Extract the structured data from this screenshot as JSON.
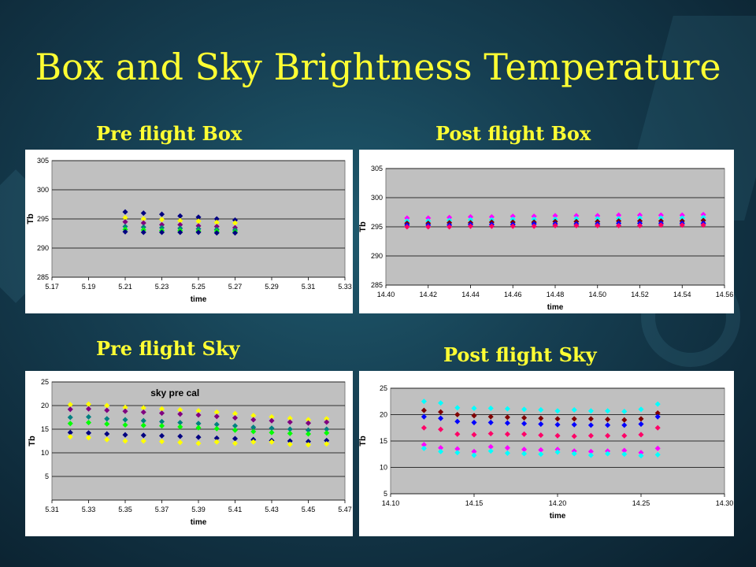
{
  "slide": {
    "title": "Box and Sky Brightness Temperature"
  },
  "labels": {
    "pre_box": "Pre flight Box",
    "post_box": "Post flight Box",
    "pre_sky": "Pre flight Sky",
    "post_sky": "Post flight Sky"
  },
  "series_colors": [
    "#000080",
    "#ff00ff",
    "#ffff00",
    "#00ffff",
    "#800080",
    "#800000",
    "#008080",
    "#0000ff",
    "#00ff00",
    "#ff0066"
  ],
  "chart_data": [
    {
      "id": "pre_box",
      "type": "scatter",
      "title": "",
      "xlabel": "time",
      "ylabel": "Tb",
      "xlim": [
        5.17,
        5.33
      ],
      "ylim": [
        285,
        305
      ],
      "xticks": [
        5.17,
        5.19,
        5.21,
        5.23,
        5.25,
        5.27,
        5.29,
        5.31,
        5.33
      ],
      "xtick_labels": [
        "5.17",
        "5.19",
        "5.21",
        "5.23",
        "5.25",
        "5.27",
        "5.29",
        "5.31",
        "5.33"
      ],
      "yticks": [
        285,
        290,
        295,
        300,
        305
      ],
      "ytick_labels": [
        "285",
        "290",
        "295",
        "300",
        "305"
      ],
      "grid": "horizontal",
      "series": [
        {
          "x": [
            5.21,
            5.22,
            5.23,
            5.24,
            5.25,
            5.26,
            5.27
          ],
          "values": [
            296.2,
            296.0,
            295.8,
            295.5,
            295.3,
            295.0,
            294.8
          ]
        },
        {
          "x": [
            5.21,
            5.22,
            5.23,
            5.24,
            5.25,
            5.26,
            5.27
          ],
          "values": [
            295.2,
            295.0,
            294.9,
            294.7,
            294.6,
            294.4,
            294.3
          ]
        },
        {
          "x": [
            5.21,
            5.22,
            5.23,
            5.24,
            5.25,
            5.26,
            5.27
          ],
          "values": [
            294.5,
            294.3,
            294.0,
            294.0,
            293.8,
            293.7,
            293.5
          ]
        },
        {
          "x": [
            5.21,
            5.22,
            5.23,
            5.24,
            5.25,
            5.26,
            5.27
          ],
          "values": [
            293.7,
            293.6,
            293.5,
            293.4,
            293.3,
            293.2,
            293.1
          ]
        },
        {
          "x": [
            5.21,
            5.22,
            5.23,
            5.24,
            5.25,
            5.26,
            5.27
          ],
          "values": [
            293.2,
            293.1,
            293.0,
            293.0,
            292.9,
            292.9,
            292.8
          ]
        },
        {
          "x": [
            5.21,
            5.22,
            5.23,
            5.24,
            5.25,
            5.26,
            5.27
          ],
          "values": [
            292.8,
            292.7,
            292.7,
            292.7,
            292.7,
            292.6,
            292.6
          ]
        }
      ]
    },
    {
      "id": "post_box",
      "type": "scatter",
      "title": "",
      "xlabel": "time",
      "ylabel": "Tb",
      "xlim": [
        14.4,
        14.56
      ],
      "ylim": [
        285,
        305
      ],
      "xticks": [
        14.4,
        14.42,
        14.44,
        14.46,
        14.48,
        14.5,
        14.52,
        14.54,
        14.56
      ],
      "xtick_labels": [
        "14.40",
        "14.42",
        "14.44",
        "14.46",
        "14.48",
        "14.50",
        "14.52",
        "14.54",
        "14.56"
      ],
      "yticks": [
        285,
        290,
        295,
        300,
        305
      ],
      "ytick_labels": [
        "285",
        "290",
        "295",
        "300",
        "305"
      ],
      "grid": "horizontal",
      "series": [
        {
          "x": [
            14.41,
            14.42,
            14.43,
            14.44,
            14.45,
            14.46,
            14.47,
            14.48,
            14.49,
            14.5,
            14.51,
            14.52,
            14.53,
            14.54,
            14.55
          ],
          "values": [
            296.5,
            296.5,
            296.6,
            296.7,
            296.7,
            296.8,
            296.8,
            296.9,
            296.9,
            296.9,
            297.0,
            297.0,
            297.0,
            297.0,
            297.1
          ]
        },
        {
          "x": [
            14.41,
            14.42,
            14.43,
            14.44,
            14.45,
            14.46,
            14.47,
            14.48,
            14.49,
            14.5,
            14.51,
            14.52,
            14.53,
            14.54,
            14.55
          ],
          "values": [
            296.0,
            296.0,
            296.1,
            296.2,
            296.2,
            296.3,
            296.3,
            296.3,
            296.4,
            296.4,
            296.4,
            296.5,
            296.5,
            296.5,
            296.6
          ]
        },
        {
          "x": [
            14.41,
            14.42,
            14.43,
            14.44,
            14.45,
            14.46,
            14.47,
            14.48,
            14.49,
            14.5,
            14.51,
            14.52,
            14.53,
            14.54,
            14.55
          ],
          "values": [
            295.6,
            295.6,
            295.7,
            295.7,
            295.8,
            295.8,
            295.8,
            295.9,
            295.9,
            295.9,
            296.0,
            296.0,
            296.0,
            296.0,
            296.1
          ]
        },
        {
          "x": [
            14.41,
            14.42,
            14.43,
            14.44,
            14.45,
            14.46,
            14.47,
            14.48,
            14.49,
            14.5,
            14.51,
            14.52,
            14.53,
            14.54,
            14.55
          ],
          "values": [
            295.3,
            295.3,
            295.3,
            295.4,
            295.4,
            295.4,
            295.5,
            295.5,
            295.5,
            295.5,
            295.6,
            295.6,
            295.6,
            295.6,
            295.6
          ]
        },
        {
          "x": [
            14.41,
            14.42,
            14.43,
            14.44,
            14.45,
            14.46,
            14.47,
            14.48,
            14.49,
            14.5,
            14.51,
            14.52,
            14.53,
            14.54,
            14.55
          ],
          "values": [
            295.0,
            295.0,
            295.0,
            295.1,
            295.1,
            295.1,
            295.1,
            295.2,
            295.2,
            295.2,
            295.2,
            295.2,
            295.3,
            295.3,
            295.3
          ]
        }
      ]
    },
    {
      "id": "pre_sky",
      "type": "scatter",
      "title": "sky pre cal",
      "xlabel": "time",
      "ylabel": "Tb",
      "xlim": [
        5.31,
        5.47
      ],
      "ylim": [
        0,
        25
      ],
      "xticks": [
        5.31,
        5.33,
        5.35,
        5.37,
        5.39,
        5.41,
        5.43,
        5.45,
        5.47
      ],
      "xtick_labels": [
        "5.31",
        "5.33",
        "5.35",
        "5.37",
        "5.39",
        "5.41",
        "5.43",
        "5.45",
        "5.47"
      ],
      "yticks": [
        0,
        5,
        10,
        15,
        20,
        25
      ],
      "ytick_labels": [
        "",
        "5",
        "10",
        "15",
        "20",
        "25"
      ],
      "grid": "horizontal",
      "series": [
        {
          "x": [
            5.32,
            5.33,
            5.34,
            5.35,
            5.36,
            5.37,
            5.38,
            5.39,
            5.4,
            5.41,
            5.42,
            5.43,
            5.44,
            5.45,
            5.46
          ],
          "values": [
            20.2,
            20.3,
            20.0,
            19.6,
            19.5,
            19.3,
            19.1,
            18.9,
            18.6,
            18.3,
            17.9,
            17.6,
            17.3,
            17.0,
            17.2
          ]
        },
        {
          "x": [
            5.32,
            5.33,
            5.34,
            5.35,
            5.36,
            5.37,
            5.38,
            5.39,
            5.4,
            5.41,
            5.42,
            5.43,
            5.44,
            5.45,
            5.46
          ],
          "values": [
            19.2,
            19.3,
            19.0,
            18.8,
            18.6,
            18.4,
            18.2,
            18.0,
            17.7,
            17.4,
            17.0,
            16.8,
            16.5,
            16.3,
            16.5
          ]
        },
        {
          "x": [
            5.32,
            5.33,
            5.34,
            5.35,
            5.36,
            5.37,
            5.38,
            5.39,
            5.4,
            5.41,
            5.42,
            5.43,
            5.44,
            5.45,
            5.46
          ],
          "values": [
            17.5,
            17.6,
            17.2,
            17.0,
            16.8,
            16.6,
            16.4,
            16.2,
            16.0,
            15.7,
            15.4,
            15.2,
            15.0,
            14.8,
            15.0
          ]
        },
        {
          "x": [
            5.32,
            5.33,
            5.34,
            5.35,
            5.36,
            5.37,
            5.38,
            5.39,
            5.4,
            5.41,
            5.42,
            5.43,
            5.44,
            5.45,
            5.46
          ],
          "values": [
            16.2,
            16.4,
            16.1,
            15.9,
            15.8,
            15.7,
            15.5,
            15.3,
            15.1,
            14.8,
            14.5,
            14.3,
            14.1,
            14.0,
            14.2
          ]
        },
        {
          "x": [
            5.32,
            5.33,
            5.34,
            5.35,
            5.36,
            5.37,
            5.38,
            5.39,
            5.4,
            5.41,
            5.42,
            5.43,
            5.44,
            5.45,
            5.46
          ],
          "values": [
            14.3,
            14.2,
            14.0,
            13.8,
            13.7,
            13.6,
            13.5,
            13.3,
            13.1,
            13.0,
            12.8,
            12.6,
            12.5,
            12.4,
            12.6
          ]
        },
        {
          "x": [
            5.32,
            5.33,
            5.34,
            5.35,
            5.36,
            5.37,
            5.38,
            5.39,
            5.4,
            5.41,
            5.42,
            5.43,
            5.44,
            5.45,
            5.46
          ],
          "values": [
            13.4,
            13.2,
            12.8,
            12.5,
            12.5,
            12.4,
            12.2,
            12.0,
            12.3,
            12.0,
            12.3,
            12.3,
            11.8,
            11.7,
            11.9
          ]
        }
      ]
    },
    {
      "id": "post_sky",
      "type": "scatter",
      "title": "",
      "xlabel": "time",
      "ylabel": "Tb",
      "xlim": [
        14.1,
        14.3
      ],
      "ylim": [
        5,
        25
      ],
      "xticks": [
        14.1,
        14.15,
        14.2,
        14.25,
        14.3
      ],
      "xtick_labels": [
        "14.10",
        "14.15",
        "14.20",
        "14.25",
        "14.30"
      ],
      "yticks": [
        5,
        10,
        15,
        20,
        25
      ],
      "ytick_labels": [
        "5",
        "10",
        "15",
        "20",
        "25"
      ],
      "grid": "horizontal",
      "series": [
        {
          "x": [
            14.12,
            14.13,
            14.14,
            14.15,
            14.16,
            14.17,
            14.18,
            14.19,
            14.2,
            14.21,
            14.22,
            14.23,
            14.24,
            14.25,
            14.26
          ],
          "values": [
            22.5,
            22.2,
            21.3,
            21.2,
            21.2,
            21.1,
            21.0,
            20.9,
            20.7,
            20.9,
            20.7,
            20.7,
            20.6,
            21.0,
            22.0
          ]
        },
        {
          "x": [
            14.12,
            14.13,
            14.14,
            14.15,
            14.16,
            14.17,
            14.18,
            14.19,
            14.2,
            14.21,
            14.22,
            14.23,
            14.24,
            14.25,
            14.26
          ],
          "values": [
            20.8,
            20.5,
            20.0,
            19.8,
            19.6,
            19.5,
            19.4,
            19.3,
            19.2,
            19.2,
            19.2,
            19.1,
            19.0,
            19.2,
            20.3
          ]
        },
        {
          "x": [
            14.12,
            14.13,
            14.14,
            14.15,
            14.16,
            14.17,
            14.18,
            14.19,
            14.2,
            14.21,
            14.22,
            14.23,
            14.24,
            14.25,
            14.26
          ],
          "values": [
            19.6,
            19.3,
            18.7,
            18.5,
            18.5,
            18.4,
            18.3,
            18.2,
            18.1,
            18.1,
            18.0,
            18.0,
            18.0,
            18.2,
            19.6
          ]
        },
        {
          "x": [
            14.12,
            14.13,
            14.14,
            14.15,
            14.16,
            14.17,
            14.18,
            14.19,
            14.2,
            14.21,
            14.22,
            14.23,
            14.24,
            14.25,
            14.26
          ],
          "values": [
            17.5,
            17.2,
            16.3,
            16.2,
            16.4,
            16.3,
            16.3,
            16.1,
            16.0,
            15.9,
            16.0,
            16.0,
            16.0,
            16.2,
            17.5
          ]
        },
        {
          "x": [
            14.12,
            14.13,
            14.14,
            14.15,
            14.16,
            14.17,
            14.18,
            14.19,
            14.2,
            14.21,
            14.22,
            14.23,
            14.24,
            14.25,
            14.26
          ],
          "values": [
            14.3,
            13.7,
            13.5,
            13.0,
            13.9,
            13.7,
            13.4,
            13.3,
            13.4,
            13.1,
            13.0,
            13.1,
            13.2,
            12.8,
            13.6
          ]
        },
        {
          "x": [
            14.12,
            14.13,
            14.14,
            14.15,
            14.16,
            14.17,
            14.18,
            14.19,
            14.2,
            14.21,
            14.22,
            14.23,
            14.24,
            14.25,
            14.26
          ],
          "values": [
            13.6,
            13.0,
            12.8,
            12.3,
            13.1,
            12.7,
            12.6,
            12.5,
            12.9,
            12.6,
            12.3,
            12.6,
            12.5,
            12.2,
            12.4
          ]
        }
      ]
    }
  ]
}
